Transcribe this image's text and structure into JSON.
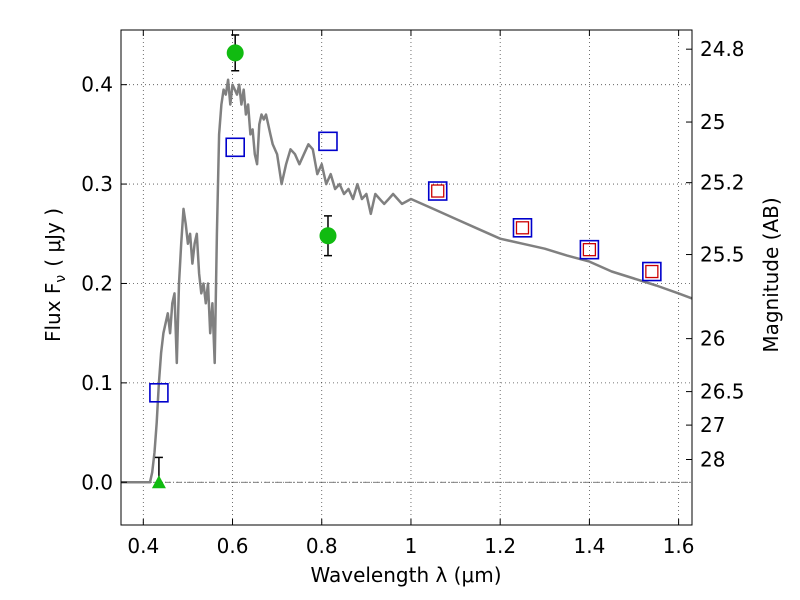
{
  "chart_data": {
    "type": "line",
    "title": "",
    "xlabel": "Wavelength  λ (μm)",
    "ylabel": "Flux  F",
    "ylabel_sub": "ν",
    "ylabel_unit": "( μJy )",
    "y2label": "Magnitude (AB)",
    "xlim": [
      0.35,
      1.63
    ],
    "ylim": [
      -0.043,
      0.455
    ],
    "grid": true,
    "x_ticks": [
      {
        "v": 0.4,
        "label": "0.4"
      },
      {
        "v": 0.6,
        "label": "0.6"
      },
      {
        "v": 0.8,
        "label": "0.8"
      },
      {
        "v": 1.0,
        "label": "1"
      },
      {
        "v": 1.2,
        "label": "1.2"
      },
      {
        "v": 1.4,
        "label": "1.4"
      },
      {
        "v": 1.6,
        "label": "1.6"
      }
    ],
    "y_ticks": [
      {
        "v": 0.0,
        "label": "0.0"
      },
      {
        "v": 0.1,
        "label": "0.1"
      },
      {
        "v": 0.2,
        "label": "0.2"
      },
      {
        "v": 0.3,
        "label": "0.3"
      },
      {
        "v": 0.4,
        "label": "0.4"
      }
    ],
    "mag_ticks": [
      {
        "v": 0.4357,
        "label": "24.8"
      },
      {
        "v": 0.3624,
        "label": "25"
      },
      {
        "v": 0.3014,
        "label": "25.2"
      },
      {
        "v": 0.2291,
        "label": "25.5"
      },
      {
        "v": 0.1445,
        "label": "26"
      },
      {
        "v": 0.0912,
        "label": "26.5"
      },
      {
        "v": 0.0575,
        "label": "27"
      },
      {
        "v": 0.0229,
        "label": "28"
      }
    ],
    "zero_line": 0.0,
    "model_sed": {
      "color": "#808080",
      "x": [
        0.35,
        0.415,
        0.42,
        0.425,
        0.43,
        0.435,
        0.44,
        0.445,
        0.45,
        0.455,
        0.46,
        0.465,
        0.47,
        0.475,
        0.48,
        0.485,
        0.49,
        0.495,
        0.5,
        0.505,
        0.51,
        0.515,
        0.52,
        0.525,
        0.53,
        0.535,
        0.54,
        0.545,
        0.55,
        0.555,
        0.56,
        0.565,
        0.57,
        0.575,
        0.58,
        0.585,
        0.59,
        0.595,
        0.6,
        0.605,
        0.61,
        0.615,
        0.62,
        0.625,
        0.63,
        0.635,
        0.64,
        0.645,
        0.65,
        0.655,
        0.66,
        0.665,
        0.67,
        0.675,
        0.68,
        0.685,
        0.69,
        0.7,
        0.71,
        0.72,
        0.73,
        0.74,
        0.75,
        0.76,
        0.77,
        0.78,
        0.79,
        0.8,
        0.81,
        0.82,
        0.83,
        0.84,
        0.85,
        0.86,
        0.87,
        0.88,
        0.89,
        0.9,
        0.91,
        0.92,
        0.93,
        0.94,
        0.95,
        0.96,
        0.97,
        0.98,
        1.0,
        1.05,
        1.1,
        1.15,
        1.2,
        1.25,
        1.3,
        1.35,
        1.4,
        1.45,
        1.5,
        1.55,
        1.6,
        1.63
      ],
      "y": [
        0.0,
        0.0,
        0.01,
        0.03,
        0.06,
        0.1,
        0.13,
        0.15,
        0.16,
        0.17,
        0.15,
        0.18,
        0.19,
        0.12,
        0.2,
        0.24,
        0.275,
        0.26,
        0.24,
        0.25,
        0.22,
        0.24,
        0.25,
        0.21,
        0.19,
        0.2,
        0.18,
        0.2,
        0.15,
        0.18,
        0.12,
        0.25,
        0.35,
        0.38,
        0.395,
        0.39,
        0.405,
        0.38,
        0.4,
        0.395,
        0.39,
        0.4,
        0.38,
        0.395,
        0.37,
        0.38,
        0.35,
        0.355,
        0.33,
        0.32,
        0.36,
        0.37,
        0.365,
        0.37,
        0.36,
        0.35,
        0.34,
        0.33,
        0.3,
        0.32,
        0.335,
        0.33,
        0.32,
        0.33,
        0.34,
        0.335,
        0.31,
        0.32,
        0.3,
        0.31,
        0.295,
        0.3,
        0.29,
        0.295,
        0.285,
        0.3,
        0.285,
        0.29,
        0.27,
        0.29,
        0.285,
        0.28,
        0.285,
        0.29,
        0.285,
        0.28,
        0.285,
        0.275,
        0.265,
        0.255,
        0.245,
        0.24,
        0.235,
        0.228,
        0.222,
        0.212,
        0.205,
        0.198,
        0.19,
        0.185
      ]
    },
    "model_bands": {
      "color": "#0000cc",
      "x": [
        0.435,
        0.606,
        0.814,
        1.06,
        1.25,
        1.4,
        1.54
      ],
      "y": [
        0.09,
        0.337,
        0.343,
        0.293,
        0.256,
        0.234,
        0.212
      ]
    },
    "observed": {
      "color": "#11bb11",
      "x": [
        0.606,
        0.814
      ],
      "y": [
        0.432,
        0.248
      ],
      "err": [
        0.018,
        0.02
      ]
    },
    "upper_limit": {
      "color": "#11bb11",
      "x": 0.435,
      "y": 0.0,
      "err_top": 0.025
    },
    "ir_observed": {
      "color": "#cc0000",
      "x": [
        1.06,
        1.25,
        1.4,
        1.54
      ],
      "y": [
        0.293,
        0.256,
        0.234,
        0.212
      ]
    }
  }
}
